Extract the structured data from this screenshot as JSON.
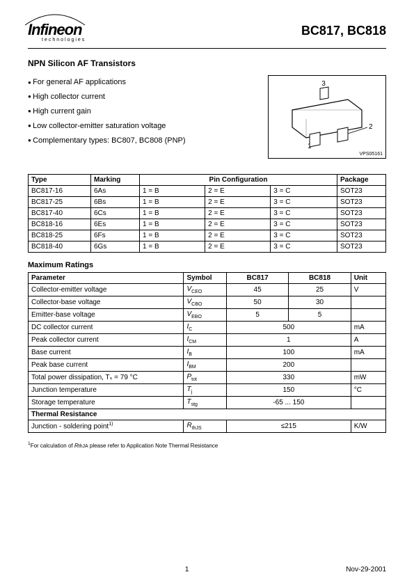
{
  "header": {
    "logo_word": "Infineon",
    "logo_sub": "technologies",
    "part_title": "BC817, BC818"
  },
  "subtitle": "NPN Silicon AF Transistors",
  "features": [
    "For general AF applications",
    "High collector current",
    "High current gain",
    "Low collector-emitter saturation voltage",
    "Complementary types: BC807, BC808 (PNP)"
  ],
  "package_code": "VPS05161",
  "pin_table": {
    "headers": {
      "type": "Type",
      "marking": "Marking",
      "pinconf": "Pin Configuration",
      "package": "Package"
    },
    "rows": [
      {
        "type": "BC817-16",
        "marking": "6As",
        "p1": "1 = B",
        "p2": "2 = E",
        "p3": "3 = C",
        "pkg": "SOT23"
      },
      {
        "type": "BC817-25",
        "marking": "6Bs",
        "p1": "1 = B",
        "p2": "2 = E",
        "p3": "3 = C",
        "pkg": "SOT23"
      },
      {
        "type": "BC817-40",
        "marking": "6Cs",
        "p1": "1 = B",
        "p2": "2 = E",
        "p3": "3 = C",
        "pkg": "SOT23"
      },
      {
        "type": "BC818-16",
        "marking": "6Es",
        "p1": "1 = B",
        "p2": "2 = E",
        "p3": "3 = C",
        "pkg": "SOT23"
      },
      {
        "type": "BC818-25",
        "marking": "6Fs",
        "p1": "1 = B",
        "p2": "2 = E",
        "p3": "3 = C",
        "pkg": "SOT23"
      },
      {
        "type": "BC818-40",
        "marking": "6Gs",
        "p1": "1 = B",
        "p2": "2 = E",
        "p3": "3 = C",
        "pkg": "SOT23"
      }
    ]
  },
  "max_ratings_title": "Maximum Ratings",
  "ratings": {
    "headers": {
      "param": "Parameter",
      "symbol": "Symbol",
      "c1": "BC817",
      "c2": "BC818",
      "unit": "Unit"
    },
    "rows": [
      {
        "param": "Collector-emitter voltage",
        "sym": "V",
        "sub": "CEO",
        "v1": "45",
        "v2": "25",
        "unit": "V",
        "span": false
      },
      {
        "param": "Collector-base voltage",
        "sym": "V",
        "sub": "CBO",
        "v1": "50",
        "v2": "30",
        "unit": "",
        "span": false
      },
      {
        "param": "Emitter-base voltage",
        "sym": "V",
        "sub": "EBO",
        "v1": "5",
        "v2": "5",
        "unit": "",
        "span": false
      },
      {
        "param": "DC collector current",
        "sym": "I",
        "sub": "C",
        "v": "500",
        "unit": "mA",
        "span": true
      },
      {
        "param": "Peak collector current",
        "sym": "I",
        "sub": "CM",
        "v": "1",
        "unit": "A",
        "span": true
      },
      {
        "param": "Base current",
        "sym": "I",
        "sub": "B",
        "v": "100",
        "unit": "mA",
        "span": true
      },
      {
        "param": "Peak base current",
        "sym": "I",
        "sub": "BM",
        "v": "200",
        "unit": "",
        "span": true
      },
      {
        "param": "Total power dissipation, Tₛ = 79 °C",
        "sym": "P",
        "sub": "tot",
        "v": "330",
        "unit": "mW",
        "span": true
      },
      {
        "param": "Junction temperature",
        "sym": "T",
        "sub": "j",
        "v": "150",
        "unit": "°C",
        "span": true
      },
      {
        "param": "Storage temperature",
        "sym": "T",
        "sub": "stg",
        "v": "-65 ... 150",
        "unit": "",
        "span": true
      }
    ]
  },
  "thermal_title": "Thermal Resistance",
  "thermal_row": {
    "param": "Junction - soldering point",
    "sup": "1)",
    "sym": "R",
    "sub": "thJS",
    "v": "≤215",
    "unit": "K/W"
  },
  "footnote_marker": "1",
  "footnote_text": "For calculation of RthJA please refer to Application Note Thermal Resistance",
  "footer": {
    "page": "1",
    "date": "Nov-29-2001"
  },
  "pins": {
    "p1": "1",
    "p2": "2",
    "p3": "3"
  },
  "colors": {
    "text": "#000000",
    "bg": "#ffffff",
    "border": "#000000"
  }
}
